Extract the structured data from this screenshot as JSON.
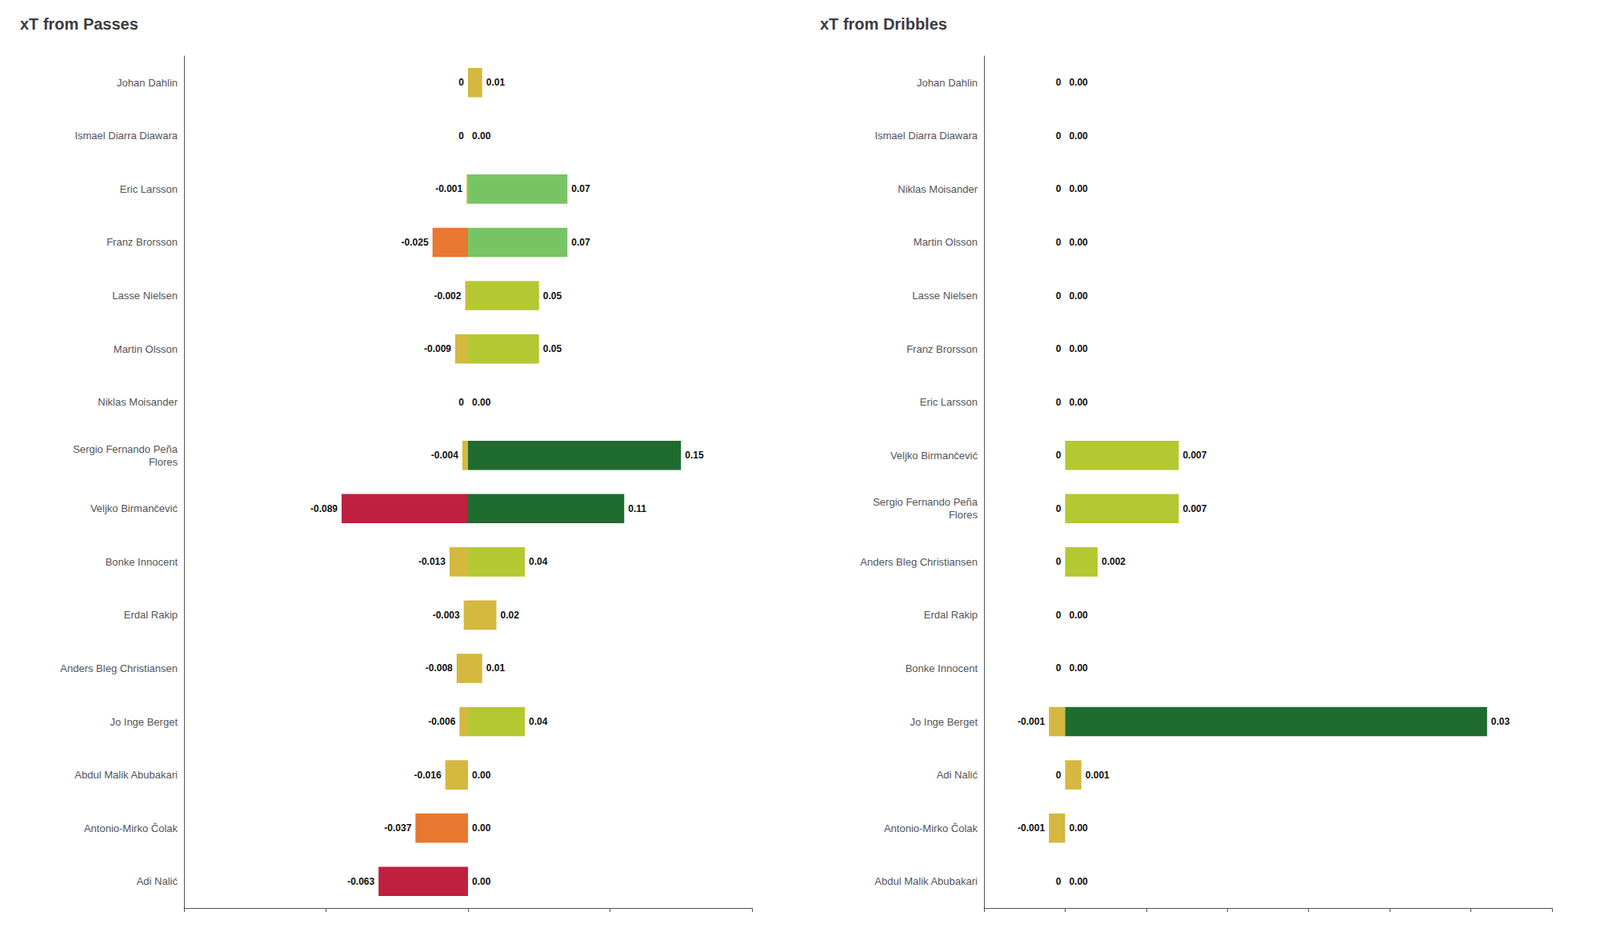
{
  "chart_data": [
    {
      "type": "bar",
      "title": "xT from Passes",
      "orientation": "horizontal",
      "data_labels": true,
      "tick_labels": "y",
      "grid": false,
      "categories": [
        "Johan Dahlin",
        "Ismael Diarra Diawara",
        "Eric Larsson",
        "Franz Brorsson",
        "Lasse Nielsen",
        "Martin Olsson",
        "Niklas Moisander",
        "Sergio Fernando Peña\nFlores",
        "Veljko Birmančević",
        "Bonke Innocent",
        "Erdal Rakip",
        "Anders Bleg Christiansen",
        "Jo Inge Berget",
        "Abdul Malik Abubakari",
        "Antonio-Mirko Čolak",
        "Adi Nalić"
      ],
      "series": [
        {
          "values": [
            0,
            0,
            -0.001,
            -0.025,
            -0.002,
            -0.009,
            0,
            -0.004,
            -0.089,
            -0.013,
            -0.003,
            -0.008,
            -0.006,
            -0.016,
            -0.037,
            -0.063
          ],
          "value_labels": [
            "0",
            "0",
            "-0.001",
            "-0.025",
            "-0.002",
            "-0.009",
            "0",
            "-0.004",
            "-0.089",
            "-0.013",
            "-0.003",
            "-0.008",
            "-0.006",
            "-0.016",
            "-0.037",
            "-0.063"
          ],
          "colors": [
            "#d4b840",
            "#d4b840",
            "#d4b840",
            "#e87830",
            "#d4b840",
            "#d4b840",
            "#d4b840",
            "#d4b840",
            "#c02040",
            "#d4b840",
            "#d4b840",
            "#d4b840",
            "#d4b840",
            "#d4b840",
            "#e87830",
            "#c02040"
          ]
        },
        {
          "values": [
            0.01,
            0.0,
            0.07,
            0.07,
            0.05,
            0.05,
            0.0,
            0.15,
            0.11,
            0.04,
            0.02,
            0.01,
            0.04,
            0.0,
            0.0,
            0.0
          ],
          "value_labels": [
            "0.01",
            "0.00",
            "0.07",
            "0.07",
            "0.05",
            "0.05",
            "0.00",
            "0.15",
            "0.11",
            "0.04",
            "0.02",
            "0.01",
            "0.04",
            "0.00",
            "0.00",
            "0.00"
          ],
          "colors": [
            "#d4b840",
            "#d4b840",
            "#78c464",
            "#78c464",
            "#b4c832",
            "#b4c832",
            "#d4b840",
            "#206b30",
            "#206b30",
            "#b4c832",
            "#d4b840",
            "#d4b840",
            "#b4c832",
            "#d4b840",
            "#d4b840",
            "#d4b840"
          ]
        }
      ],
      "xlim": [
        -0.2,
        0.2
      ],
      "xticks": [
        -0.2,
        -0.1,
        0,
        0.1,
        0.2
      ]
    },
    {
      "type": "bar",
      "title": "xT from Dribbles",
      "orientation": "horizontal",
      "data_labels": true,
      "tick_labels": "y",
      "grid": false,
      "categories": [
        "Johan Dahlin",
        "Ismael Diarra Diawara",
        "Niklas Moisander",
        "Martin Olsson",
        "Lasse Nielsen",
        "Franz Brorsson",
        "Eric Larsson",
        "Veljko Birmančević",
        "Sergio Fernando Peña\nFlores",
        "Anders Bleg Christiansen",
        "Erdal Rakip",
        "Bonke Innocent",
        "Jo Inge Berget",
        "Adi Nalić",
        "Antonio-Mirko Čolak",
        "Abdul Malik Abubakari"
      ],
      "series": [
        {
          "values": [
            0,
            0,
            0,
            0,
            0,
            0,
            0,
            0,
            0,
            0,
            0,
            0,
            -0.001,
            0,
            -0.001,
            0
          ],
          "value_labels": [
            "0",
            "0",
            "0",
            "0",
            "0",
            "0",
            "0",
            "0",
            "0",
            "0",
            "0",
            "0",
            "-0.001",
            "0",
            "-0.001",
            "0"
          ],
          "colors": [
            "#d4b840",
            "#d4b840",
            "#d4b840",
            "#d4b840",
            "#d4b840",
            "#d4b840",
            "#d4b840",
            "#d4b840",
            "#d4b840",
            "#d4b840",
            "#d4b840",
            "#d4b840",
            "#d4b840",
            "#d4b840",
            "#d4b840",
            "#d4b840"
          ]
        },
        {
          "values": [
            0,
            0,
            0,
            0,
            0,
            0,
            0,
            0.007,
            0.007,
            0.002,
            0,
            0,
            0.026,
            0.001,
            0,
            0
          ],
          "value_labels": [
            "0.00",
            "0.00",
            "0.00",
            "0.00",
            "0.00",
            "0.00",
            "0.00",
            "0.007",
            "0.007",
            "0.002",
            "0.00",
            "0.00",
            "0.03",
            "0.001",
            "0.00",
            "0.00"
          ],
          "colors": [
            "#d4b840",
            "#d4b840",
            "#d4b840",
            "#d4b840",
            "#d4b840",
            "#d4b840",
            "#d4b840",
            "#b4c832",
            "#b4c832",
            "#b4c832",
            "#d4b840",
            "#d4b840",
            "#206b30",
            "#d4b840",
            "#d4b840",
            "#d4b840"
          ]
        }
      ],
      "xlim": [
        -0.005,
        0.03
      ],
      "xticks": [
        -0.005,
        0,
        0.005,
        0.01,
        0.015,
        0.02,
        0.025,
        0.03
      ]
    }
  ]
}
